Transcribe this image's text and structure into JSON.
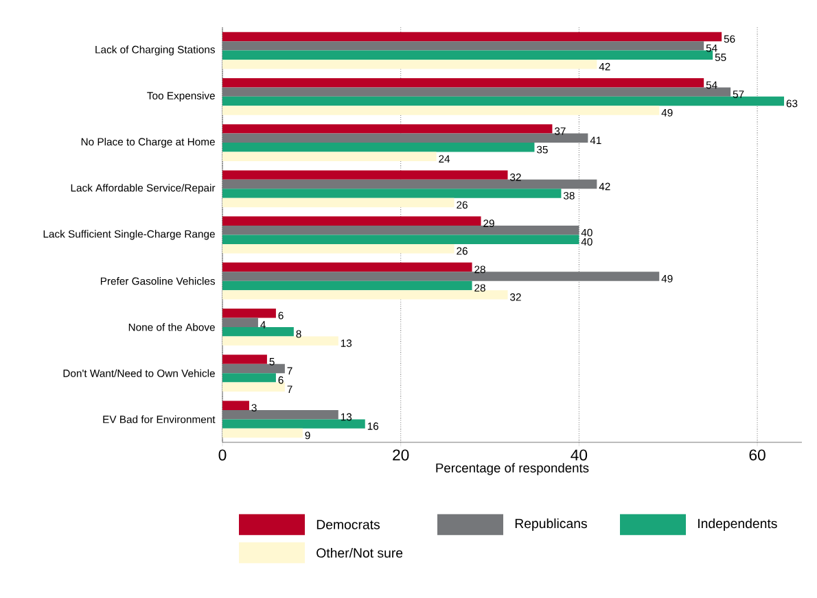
{
  "chart_data": {
    "type": "bar",
    "orientation": "horizontal",
    "xlabel": "Percentage of respondents",
    "categories": [
      "Lack of Charging Stations",
      "Too Expensive",
      "No Place to Charge at Home",
      "Lack Affordable Service/Repair",
      "Lack Sufficient Single-Charge Range",
      "Prefer Gasoline Vehicles",
      "None of the Above",
      "Don't Want/Need to Own Vehicle",
      "EV Bad for Environment"
    ],
    "series": [
      {
        "name": "Democrats",
        "color": "#b90026",
        "values": [
          56,
          54,
          37,
          32,
          29,
          28,
          6,
          5,
          3
        ]
      },
      {
        "name": "Republicans",
        "color": "#75777a",
        "values": [
          54,
          57,
          41,
          42,
          40,
          49,
          4,
          7,
          13
        ]
      },
      {
        "name": "Independents",
        "color": "#1aa579",
        "values": [
          55,
          63,
          35,
          38,
          40,
          28,
          8,
          6,
          16
        ]
      },
      {
        "name": "Other/Not sure",
        "color": "#fff8d2",
        "values": [
          42,
          49,
          24,
          26,
          26,
          32,
          13,
          7,
          9
        ]
      }
    ],
    "xlim": [
      0,
      65
    ],
    "xticks": [
      0,
      20,
      40,
      60
    ],
    "grid": "x",
    "legend": "bottom",
    "data_labels": true
  }
}
